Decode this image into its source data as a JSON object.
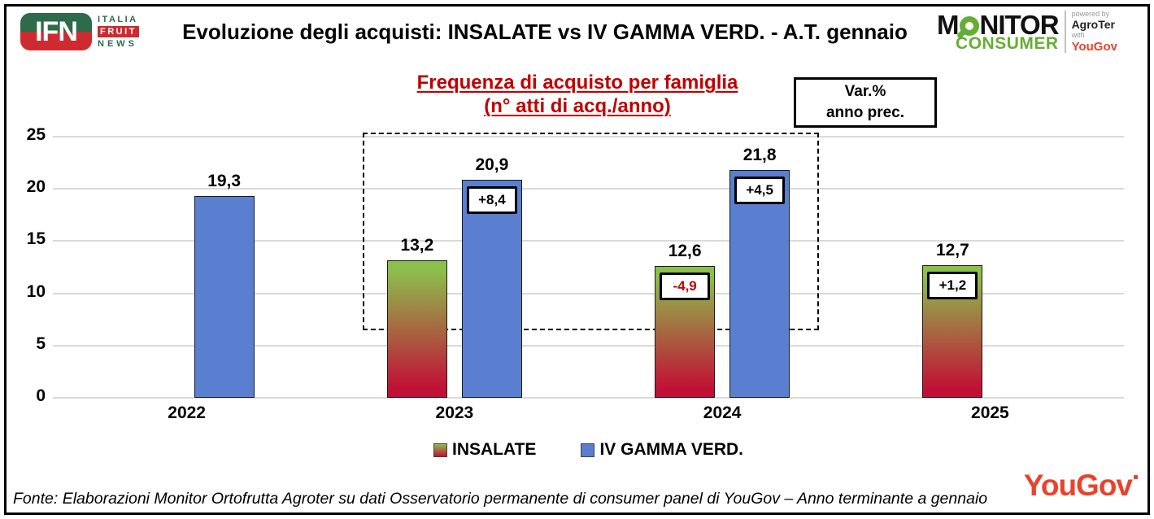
{
  "header": {
    "title": "Evoluzione degli acquisti: INSALATE vs IV GAMMA VERD.  - A.T. gennaio"
  },
  "logos": {
    "ifn": {
      "abbr": "IFN",
      "italia": "ITALIA",
      "fruit": "FRUIT",
      "news": "NEWS",
      "green": "#2E6B4A",
      "red": "#CE2B30"
    },
    "monitor": {
      "monitor_m": "M",
      "monitor_rest": "NITOR",
      "consumer": "CONSUMER",
      "powered_by": "powered by",
      "agroter": "AgroTer",
      "with_word": "with",
      "yougov": "YouGov",
      "green": "#66AD35"
    }
  },
  "chart": {
    "subtitle_line1": "Frequenza di acquisto per famiglia",
    "subtitle_line2": "(n° atti di acq./anno)",
    "subtitle_color": "#C00000",
    "var_box": {
      "line1": "Var.%",
      "line2": "anno prec."
    }
  },
  "chart_data": {
    "type": "bar",
    "title": "Frequenza di acquisto per famiglia (n° atti di acq./anno)",
    "categories": [
      "2022",
      "2023",
      "2024",
      "2025"
    ],
    "series": [
      {
        "name": "INSALATE",
        "values": [
          null,
          13.2,
          12.6,
          12.7
        ],
        "value_labels": [
          "",
          "13,2",
          "12,6",
          "12,7"
        ],
        "var_labels": [
          "",
          "",
          "-4,9",
          "+1,2"
        ],
        "color_top": "#8CC04D",
        "color_bottom": "#C11035"
      },
      {
        "name": "IV GAMMA VERD.",
        "values": [
          19.3,
          20.9,
          21.8,
          null
        ],
        "value_labels": [
          "19,3",
          "20,9",
          "21,8",
          ""
        ],
        "var_labels": [
          "",
          "+8,4",
          "+4,5",
          ""
        ],
        "color": "#5B7FD0"
      }
    ],
    "xlabel": "",
    "ylabel": "",
    "ylim": [
      0,
      25
    ],
    "yticks": [
      0,
      5,
      10,
      15,
      20,
      25
    ],
    "grid": true,
    "gridline_color": "#D9D9D9",
    "legend_position": "bottom",
    "annotation": {
      "highlight_categories": [
        "2023",
        "2024"
      ],
      "negative_label_color": "#C00000"
    }
  },
  "footer": {
    "fonte": "Fonte: Elaborazioni Monitor Ortofrutta Agroter su dati Osservatorio permanente di consumer panel di YouGov  – Anno terminante a gennaio",
    "yougov": "YouGov",
    "yougov_color": "#E8432D"
  }
}
